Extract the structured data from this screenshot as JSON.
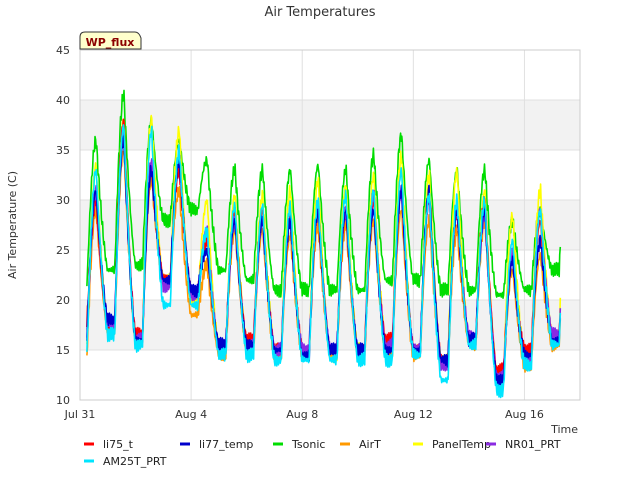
{
  "chart_data": {
    "type": "line",
    "title": "Air Temperatures",
    "badge": "WP_flux",
    "xlabel": "Time",
    "ylabel": "Air Temperature (C)",
    "xlim": [
      0,
      18
    ],
    "ylim": [
      10,
      45
    ],
    "yticks": [
      10,
      15,
      20,
      25,
      30,
      35,
      40,
      45
    ],
    "xticks": [
      {
        "value": 0,
        "label": "Jul 31"
      },
      {
        "value": 4,
        "label": "Aug 4"
      },
      {
        "value": 8,
        "label": "Aug 8"
      },
      {
        "value": 12,
        "label": "Aug 12"
      },
      {
        "value": 16,
        "label": "Aug 16"
      }
    ],
    "grid": true,
    "bands": [
      [
        15,
        20
      ],
      [
        25,
        30
      ],
      [
        35,
        40
      ]
    ],
    "legend_position": "bottom",
    "day_start": 0.25,
    "day_end": 17.3,
    "series": [
      {
        "name": "li75_t",
        "color": "#ff0000",
        "daily_max": [
          30,
          38,
          33,
          33,
          26,
          29,
          29,
          28,
          29,
          29,
          30,
          31,
          30,
          29,
          30,
          24,
          28,
          30
        ],
        "daily_min": [
          17.5,
          17,
          16.5,
          22,
          21,
          15,
          16,
          15,
          15,
          15,
          15,
          16,
          15,
          14,
          16,
          13,
          15,
          16
        ]
      },
      {
        "name": "li77_temp",
        "color": "#0000cc",
        "daily_max": [
          31,
          36,
          33,
          34,
          25,
          28,
          28,
          28,
          29,
          29,
          29,
          31,
          31,
          29,
          29,
          24,
          26,
          30
        ],
        "daily_min": [
          16.5,
          18,
          16,
          22,
          21,
          15.5,
          15.5,
          15,
          14.5,
          15,
          15,
          15,
          15,
          14,
          16,
          12,
          14.5,
          16
        ]
      },
      {
        "name": "Tsonic",
        "color": "#00dd00",
        "daily_max": [
          36,
          40.5,
          38,
          36,
          34,
          33,
          33,
          33,
          33.5,
          33,
          34.5,
          36.5,
          34,
          33,
          33,
          28,
          29,
          33.5
        ],
        "daily_min": [
          21.5,
          23,
          23.5,
          28,
          29,
          23,
          22,
          21,
          21,
          21,
          21,
          22,
          22,
          21,
          21,
          20.5,
          21,
          23
        ]
      },
      {
        "name": "AirT",
        "color": "#ff9900",
        "daily_max": [
          29,
          35,
          32,
          31,
          23.5,
          27,
          27,
          26.5,
          27.5,
          27.5,
          28,
          29,
          28,
          27,
          28,
          23,
          24.5,
          28
        ],
        "daily_min": [
          14.5,
          17,
          16,
          22,
          18.5,
          14.5,
          15,
          14.5,
          14.5,
          14.5,
          14.5,
          15,
          14.5,
          13.5,
          15.5,
          12.5,
          13.5,
          15.5
        ]
      },
      {
        "name": "PanelTemp",
        "color": "#ffff00",
        "daily_max": [
          33.5,
          38,
          38,
          37,
          30,
          30.5,
          30.5,
          31,
          32,
          31.5,
          32.5,
          34.5,
          32.5,
          33,
          31,
          28.5,
          31,
          32
        ],
        "daily_min": [
          15,
          17,
          16,
          22,
          20,
          15,
          15.5,
          15,
          14.5,
          14.5,
          15,
          15.5,
          14.5,
          14,
          16,
          12.5,
          14,
          16.5
        ]
      },
      {
        "name": "NR01_PRT",
        "color": "#8a2be2",
        "daily_max": [
          31,
          37,
          34,
          34,
          27,
          28,
          28,
          28,
          29,
          29,
          30.5,
          31,
          30,
          29,
          28.5,
          24.5,
          29,
          30
        ],
        "daily_min": [
          16,
          17.5,
          16,
          21.5,
          20.5,
          15,
          15.5,
          15,
          15,
          15,
          15,
          15.5,
          15,
          13.5,
          16.5,
          12.5,
          14,
          16.5
        ]
      },
      {
        "name": "AM25T_PRT",
        "color": "#00e5ff",
        "daily_max": [
          33,
          37.5,
          37,
          35,
          27,
          29.5,
          29.5,
          29.5,
          30,
          30.5,
          31,
          33,
          30.5,
          30,
          30,
          26,
          29,
          31.5
        ],
        "daily_min": [
          14.5,
          16.5,
          15.5,
          19.5,
          19.5,
          14.5,
          14.5,
          14,
          14,
          14,
          14,
          14,
          14.5,
          12,
          15.5,
          11,
          13.5,
          15.5
        ]
      }
    ]
  }
}
